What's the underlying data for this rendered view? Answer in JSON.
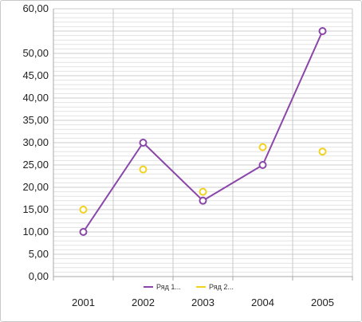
{
  "chart_data": {
    "type": "line",
    "title": "",
    "xlabel": "",
    "ylabel": "",
    "categories": [
      "2001",
      "2002",
      "2003",
      "2004",
      "2005"
    ],
    "ylim": [
      0,
      60
    ],
    "yticks": [
      "0,00",
      "5,00",
      "10,00",
      "15,00",
      "20,00",
      "25,00",
      "30,00",
      "35,00",
      "40,00",
      "45,00",
      "50,00",
      "60,00"
    ],
    "grid": true,
    "legend_position": "bottom",
    "series": [
      {
        "name": "Ряд 1...",
        "style": "line-markers",
        "color": "#8a46a8",
        "values": [
          10,
          30,
          17,
          25,
          55
        ]
      },
      {
        "name": "Ряд 2...",
        "style": "markers-only",
        "color": "#f2d21e",
        "values": [
          15,
          24,
          19,
          29,
          28
        ]
      }
    ]
  }
}
